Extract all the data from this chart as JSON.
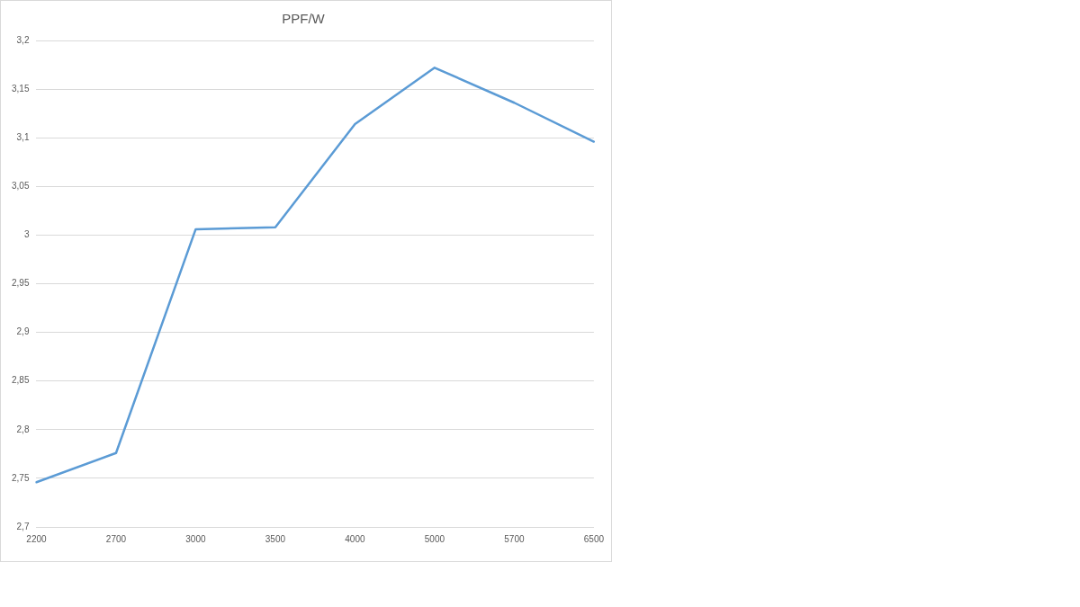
{
  "chart_data": {
    "type": "line",
    "title": "PPF/W",
    "categories": [
      "2200",
      "2700",
      "3000",
      "3500",
      "4000",
      "5000",
      "5700",
      "6500"
    ],
    "series": [
      {
        "color": "#5b9bd5",
        "values": [
          2.746,
          2.776,
          3.006,
          3.008,
          3.114,
          3.172,
          3.136,
          3.096
        ]
      }
    ],
    "ylim": [
      2.7,
      3.2
    ],
    "yticks": [
      {
        "value": 2.7,
        "label": "2,7"
      },
      {
        "value": 2.75,
        "label": "2,75"
      },
      {
        "value": 2.8,
        "label": "2,8"
      },
      {
        "value": 2.85,
        "label": "2,85"
      },
      {
        "value": 2.9,
        "label": "2,9"
      },
      {
        "value": 2.95,
        "label": "2,95"
      },
      {
        "value": 3,
        "label": "3"
      },
      {
        "value": 3.05,
        "label": "3,05"
      },
      {
        "value": 3.1,
        "label": "3,1"
      },
      {
        "value": 3.15,
        "label": "3,15"
      },
      {
        "value": 3.2,
        "label": "3,2"
      }
    ],
    "grid": "y",
    "legend": false,
    "marker": "none",
    "line_style": "solid"
  }
}
